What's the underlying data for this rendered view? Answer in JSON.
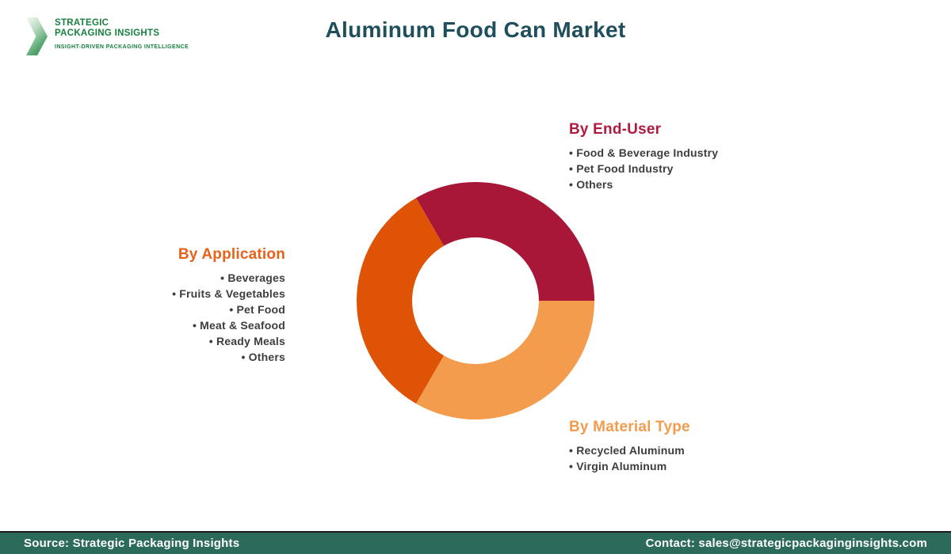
{
  "brand": {
    "name_line1": "STRATEGIC",
    "name_line2": "PACKAGING INSIGHTS",
    "tagline": "INSIGHT-DRIVEN PACKAGING INTELLIGENCE",
    "text_color": "#17803F"
  },
  "header": {
    "title": "Aluminum Food Can Market",
    "title_color": "#1F4E5C"
  },
  "segments": {
    "end_user": {
      "heading": "By End-User",
      "color": "#B01A3C",
      "items": [
        "Food & Beverage Industry",
        "Pet Food Industry",
        "Others"
      ]
    },
    "application": {
      "heading": "By Application",
      "color": "#E8611B",
      "items": [
        "Beverages",
        "Fruits & Vegetables",
        "Pet Food",
        "Meat & Seafood",
        "Ready Meals",
        "Others"
      ]
    },
    "material": {
      "heading": "By Material Type",
      "color": "#F49B4D",
      "items": [
        "Recycled Aluminum",
        "Virgin Aluminum"
      ]
    }
  },
  "chart_data": {
    "type": "pie",
    "subtype": "donut",
    "title": "Aluminum Food Can Market",
    "note": "Three equal decorative segments, one per market-segmentation category; no numeric labels shown",
    "series": [
      {
        "name": "By End-User",
        "value": 33.33,
        "color": "#A81638"
      },
      {
        "name": "By Material Type",
        "value": 33.33,
        "color": "#F49C4D"
      },
      {
        "name": "By Application",
        "value": 33.34,
        "color": "#DF5306"
      }
    ],
    "start_angle_deg": -30,
    "inner_radius_ratio": 0.533,
    "legend_position": "around-chart"
  },
  "footer": {
    "source": "Source: Strategic Packaging Insights",
    "contact": "Contact: sales@strategicpackaginginsights.com",
    "background": "#2C6B5B"
  }
}
